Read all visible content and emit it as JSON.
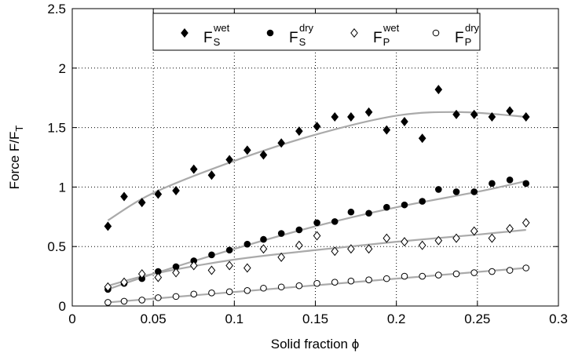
{
  "chart_data": {
    "type": "scatter",
    "xlabel": "Solid fraction ϕ",
    "ylabel": "Force F/F",
    "ylabel_sub": "T",
    "xlim": [
      0,
      0.3
    ],
    "ylim": [
      0,
      2.5
    ],
    "xticks": [
      0,
      0.05,
      0.1,
      0.15,
      0.2,
      0.25,
      0.3
    ],
    "xtick_labels": [
      "0",
      "0.05",
      "0.1",
      "0.15",
      "0.2",
      "0.25",
      "0.3"
    ],
    "yticks": [
      0,
      0.5,
      1,
      1.5,
      2,
      2.5
    ],
    "ytick_labels": [
      "0",
      "0.5",
      "1",
      "1.5",
      "2",
      "2.5"
    ],
    "grid": true,
    "grid_style": "dotted",
    "legend_position": "top-center",
    "fit_color": "#aaaaaa",
    "series": [
      {
        "name": "F",
        "sub": "S",
        "sup": "wet",
        "marker": "filled-diamond",
        "x": [
          0.022,
          0.032,
          0.043,
          0.053,
          0.064,
          0.075,
          0.086,
          0.097,
          0.108,
          0.118,
          0.129,
          0.14,
          0.151,
          0.162,
          0.172,
          0.183,
          0.194,
          0.205,
          0.216,
          0.226,
          0.237,
          0.248,
          0.259,
          0.27,
          0.28
        ],
        "y": [
          0.67,
          0.92,
          0.87,
          0.94,
          0.97,
          1.15,
          1.1,
          1.23,
          1.31,
          1.27,
          1.37,
          1.47,
          1.51,
          1.59,
          1.59,
          1.63,
          1.48,
          1.55,
          1.41,
          1.82,
          1.61,
          1.61,
          1.59,
          1.64,
          1.59
        ],
        "fit": [
          [
            0.022,
            0.72
          ],
          [
            0.05,
            0.95
          ],
          [
            0.1,
            1.22
          ],
          [
            0.15,
            1.44
          ],
          [
            0.2,
            1.6
          ],
          [
            0.24,
            1.63
          ],
          [
            0.28,
            1.59
          ]
        ]
      },
      {
        "name": "F",
        "sub": "S",
        "sup": "dry",
        "marker": "filled-circle",
        "x": [
          0.022,
          0.032,
          0.043,
          0.053,
          0.064,
          0.075,
          0.086,
          0.097,
          0.108,
          0.118,
          0.129,
          0.14,
          0.151,
          0.162,
          0.172,
          0.183,
          0.194,
          0.205,
          0.216,
          0.226,
          0.237,
          0.248,
          0.259,
          0.27,
          0.28
        ],
        "y": [
          0.14,
          0.19,
          0.23,
          0.29,
          0.33,
          0.38,
          0.43,
          0.47,
          0.52,
          0.56,
          0.61,
          0.64,
          0.7,
          0.71,
          0.79,
          0.78,
          0.83,
          0.85,
          0.88,
          0.98,
          0.96,
          0.96,
          1.03,
          1.06,
          1.03
        ]
      },
      {
        "name": "F",
        "sub": "P",
        "sup": "wet",
        "marker": "open-diamond",
        "x": [
          0.022,
          0.032,
          0.043,
          0.053,
          0.064,
          0.075,
          0.086,
          0.097,
          0.108,
          0.118,
          0.129,
          0.14,
          0.151,
          0.162,
          0.172,
          0.183,
          0.194,
          0.205,
          0.216,
          0.226,
          0.237,
          0.248,
          0.259,
          0.27,
          0.28
        ],
        "y": [
          0.16,
          0.2,
          0.27,
          0.24,
          0.28,
          0.34,
          0.3,
          0.34,
          0.32,
          0.48,
          0.41,
          0.51,
          0.59,
          0.46,
          0.48,
          0.48,
          0.57,
          0.54,
          0.51,
          0.55,
          0.57,
          0.63,
          0.57,
          0.65,
          0.7
        ]
      },
      {
        "name": "F",
        "sub": "P",
        "sup": "dry",
        "marker": "open-circle",
        "x": [
          0.022,
          0.032,
          0.043,
          0.053,
          0.064,
          0.075,
          0.086,
          0.097,
          0.108,
          0.118,
          0.129,
          0.14,
          0.151,
          0.162,
          0.172,
          0.183,
          0.194,
          0.205,
          0.216,
          0.226,
          0.237,
          0.248,
          0.259,
          0.27,
          0.28
        ],
        "y": [
          0.03,
          0.04,
          0.05,
          0.07,
          0.08,
          0.1,
          0.11,
          0.12,
          0.13,
          0.15,
          0.16,
          0.17,
          0.19,
          0.2,
          0.21,
          0.22,
          0.23,
          0.25,
          0.25,
          0.26,
          0.27,
          0.28,
          0.29,
          0.3,
          0.32
        ],
        "fit": [
          [
            0.022,
            0.03
          ],
          [
            0.28,
            0.32
          ]
        ]
      }
    ],
    "extra_fits": [
      [
        [
          0.022,
          0.14
        ],
        [
          0.05,
          0.27
        ],
        [
          0.1,
          0.48
        ],
        [
          0.15,
          0.67
        ],
        [
          0.2,
          0.83
        ],
        [
          0.25,
          0.96
        ],
        [
          0.28,
          1.05
        ]
      ],
      [
        [
          0.022,
          0.17
        ],
        [
          0.05,
          0.27
        ],
        [
          0.1,
          0.39
        ],
        [
          0.15,
          0.47
        ],
        [
          0.2,
          0.54
        ],
        [
          0.25,
          0.6
        ],
        [
          0.28,
          0.64
        ]
      ]
    ]
  }
}
